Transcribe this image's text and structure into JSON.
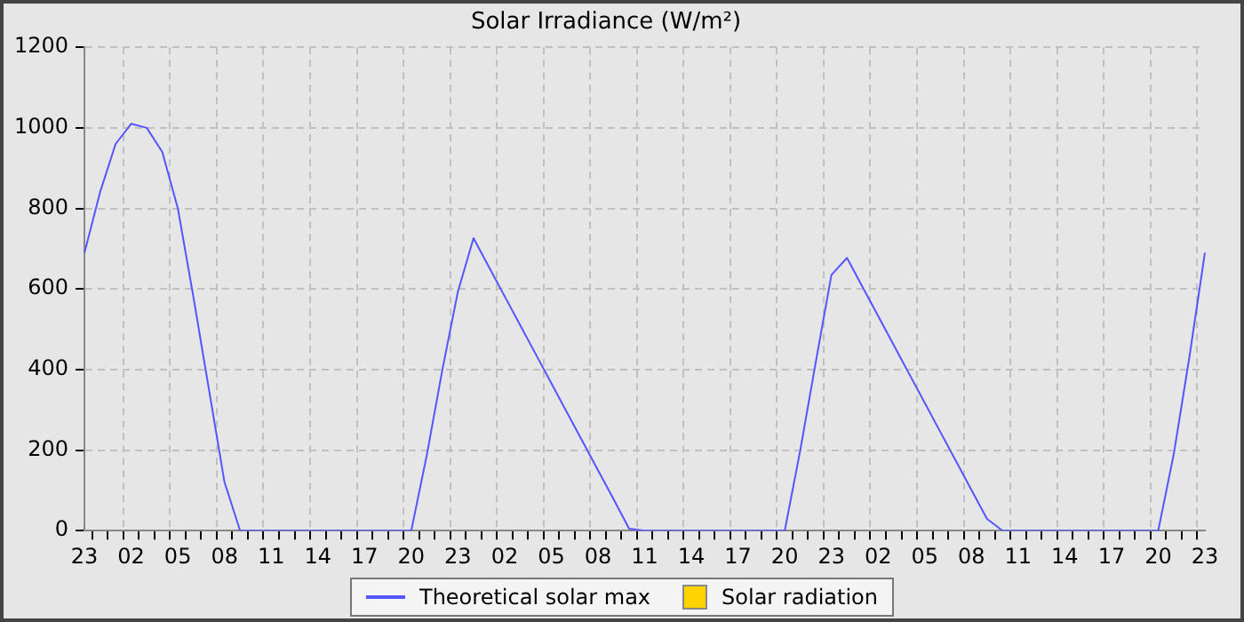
{
  "chart_data": {
    "type": "line",
    "title": "Solar Irradiance (W/m²)",
    "categories": [
      "23",
      null,
      null,
      "02",
      null,
      null,
      "05",
      null,
      null,
      "08",
      null,
      null,
      "11",
      null,
      null,
      "14",
      null,
      null,
      "17",
      null,
      null,
      "20",
      null,
      null,
      "23",
      null,
      null,
      "02",
      null,
      null,
      "05",
      null,
      null,
      "08",
      null,
      null,
      "11",
      null,
      null,
      "14",
      null,
      null,
      "17",
      null,
      null,
      "20",
      null,
      null,
      "23",
      null,
      null,
      "02",
      null,
      null,
      "05",
      null,
      null,
      "08",
      null,
      null,
      "11",
      null,
      null,
      "14",
      null,
      null,
      "17",
      null,
      null,
      "20",
      null,
      null,
      "23"
    ],
    "ylim": [
      0,
      1200
    ],
    "yticks": [
      0,
      200,
      400,
      600,
      800,
      1000,
      1200
    ],
    "grid": true,
    "legend": "bottom",
    "marker": "none",
    "line_style": "solid",
    "series": [
      {
        "name": "Theoretical solar max",
        "color": "#5555ff",
        "values": [
          690,
          840,
          960,
          1010,
          1000,
          940,
          800,
          580,
          350,
          120,
          0,
          0,
          0,
          0,
          0,
          0,
          0,
          0,
          0,
          0,
          0,
          0,
          188,
          400,
          594,
          726,
          654,
          582,
          510,
          438,
          366,
          294,
          222,
          150,
          78,
          5,
          0,
          0,
          0,
          0,
          0,
          0,
          0,
          0,
          0,
          0,
          200,
          420,
          635,
          677,
          605,
          533,
          461,
          389,
          317,
          245,
          173,
          101,
          29,
          0,
          0,
          0,
          0,
          0,
          0,
          0,
          0,
          0,
          0,
          0,
          190,
          430,
          690
        ]
      },
      {
        "name": "Solar radiation",
        "color": "#ffd200",
        "type": "bar",
        "values": [
          null,
          null,
          null,
          null,
          null,
          null,
          null,
          null,
          null,
          null,
          null,
          null,
          null,
          null,
          null,
          null,
          null,
          null,
          null,
          null,
          null,
          null,
          null,
          null,
          null,
          null,
          null,
          null,
          null,
          null,
          null,
          null,
          null,
          null,
          null,
          null,
          null,
          null,
          null,
          null,
          null,
          null,
          null,
          null,
          null,
          null,
          null,
          null,
          null,
          null,
          null,
          null,
          null,
          null,
          null,
          null,
          null,
          null,
          null,
          null,
          null,
          null,
          null,
          null,
          null,
          null,
          null,
          null,
          null,
          null,
          null,
          null,
          null
        ]
      }
    ]
  }
}
